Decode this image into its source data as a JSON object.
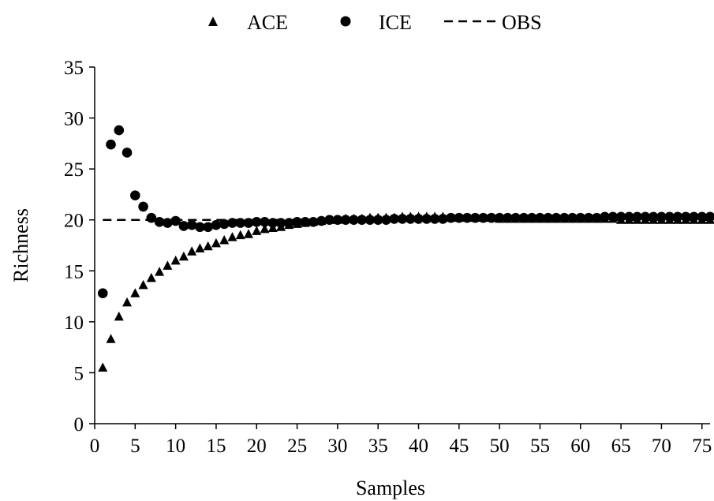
{
  "chart_data": {
    "type": "scatter",
    "title": "",
    "xlabel": "Samples",
    "ylabel": "Richness",
    "xlim": [
      0,
      76
    ],
    "ylim": [
      0,
      35
    ],
    "xticks": [
      0,
      5,
      10,
      15,
      20,
      25,
      30,
      35,
      40,
      45,
      50,
      55,
      60,
      65,
      70,
      75
    ],
    "yticks": [
      0,
      5,
      10,
      15,
      20,
      25,
      30,
      35
    ],
    "grid": false,
    "legend": "top-center",
    "series": [
      {
        "name": "ACE",
        "marker": "triangle",
        "color": "#000000",
        "x": [
          1,
          2,
          3,
          4,
          5,
          6,
          7,
          8,
          9,
          10,
          11,
          12,
          13,
          14,
          15,
          16,
          17,
          18,
          19,
          20,
          21,
          22,
          23,
          24,
          25,
          26,
          27,
          28,
          29,
          30,
          31,
          32,
          33,
          34,
          35,
          36,
          37,
          38,
          39,
          40,
          41,
          42,
          43,
          44,
          45,
          46,
          47,
          48,
          49,
          50,
          51,
          52,
          53,
          54,
          55,
          56,
          57,
          58,
          59,
          60,
          61,
          62,
          63,
          64,
          65,
          66,
          67,
          68,
          69,
          70,
          71,
          72,
          73,
          74,
          75,
          76
        ],
        "y": [
          5.5,
          8.3,
          10.5,
          11.9,
          12.8,
          13.6,
          14.3,
          14.9,
          15.5,
          16.0,
          16.4,
          16.9,
          17.2,
          17.4,
          17.7,
          18.0,
          18.3,
          18.5,
          18.6,
          18.9,
          19.1,
          19.2,
          19.3,
          19.5,
          19.6,
          19.7,
          19.8,
          19.9,
          20.0,
          20.0,
          20.1,
          20.1,
          20.1,
          20.2,
          20.2,
          20.2,
          20.2,
          20.3,
          20.3,
          20.3,
          20.3,
          20.3,
          20.3,
          20.2,
          20.2,
          20.2,
          20.2,
          20.2,
          20.2,
          20.1,
          20.1,
          20.1,
          20.1,
          20.1,
          20.1,
          20.1,
          20.1,
          20.1,
          20.1,
          20.1,
          20.1,
          20.1,
          20.1,
          20.1,
          20.0,
          20.0,
          20.0,
          20.0,
          20.0,
          20.0,
          20.0,
          20.0,
          20.0,
          20.0,
          20.0,
          20.0
        ]
      },
      {
        "name": "ICE",
        "marker": "circle",
        "color": "#000000",
        "x": [
          1,
          2,
          3,
          4,
          5,
          6,
          7,
          8,
          9,
          10,
          11,
          12,
          13,
          14,
          15,
          16,
          17,
          18,
          19,
          20,
          21,
          22,
          23,
          24,
          25,
          26,
          27,
          28,
          29,
          30,
          31,
          32,
          33,
          34,
          35,
          36,
          37,
          38,
          39,
          40,
          41,
          42,
          43,
          44,
          45,
          46,
          47,
          48,
          49,
          50,
          51,
          52,
          53,
          54,
          55,
          56,
          57,
          58,
          59,
          60,
          61,
          62,
          63,
          64,
          65,
          66,
          67,
          68,
          69,
          70,
          71,
          72,
          73,
          74,
          75,
          76
        ],
        "y": [
          12.8,
          27.4,
          28.8,
          26.6,
          22.4,
          21.3,
          20.2,
          19.8,
          19.7,
          19.9,
          19.4,
          19.5,
          19.3,
          19.3,
          19.5,
          19.6,
          19.7,
          19.7,
          19.7,
          19.8,
          19.8,
          19.7,
          19.7,
          19.7,
          19.8,
          19.8,
          19.8,
          19.9,
          20.0,
          20.0,
          20.0,
          20.0,
          20.0,
          20.0,
          20.0,
          20.0,
          20.1,
          20.1,
          20.1,
          20.1,
          20.1,
          20.1,
          20.1,
          20.2,
          20.2,
          20.2,
          20.2,
          20.2,
          20.2,
          20.2,
          20.2,
          20.2,
          20.2,
          20.2,
          20.2,
          20.2,
          20.2,
          20.2,
          20.2,
          20.2,
          20.2,
          20.2,
          20.3,
          20.3,
          20.3,
          20.3,
          20.3,
          20.3,
          20.3,
          20.3,
          20.3,
          20.3,
          20.3,
          20.3,
          20.3,
          20.3
        ]
      },
      {
        "name": "OBS",
        "marker": "dashed-line",
        "color": "#000000",
        "x": [
          1,
          76
        ],
        "y": [
          20,
          20
        ]
      }
    ]
  }
}
